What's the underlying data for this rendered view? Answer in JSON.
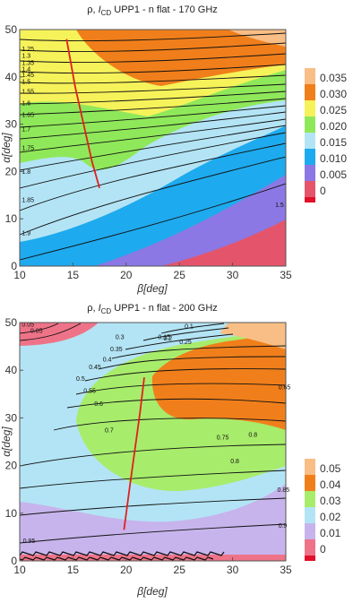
{
  "chart_data": [
    {
      "type": "contour",
      "title": "ρ, I_CD UPP1 - n flat - 170 GHz",
      "title_parts": {
        "rho": "ρ, ",
        "I": "I",
        "sub": "CD",
        "rest": " UPP1 - n flat - 170 GHz"
      },
      "xlabel": "β[deg]",
      "ylabel": "α[deg]",
      "xlim": [
        10,
        35
      ],
      "ylim": [
        0,
        50
      ],
      "xticks": [
        "10",
        "15",
        "20",
        "25",
        "30",
        "35"
      ],
      "yticks": [
        "0",
        "10",
        "20",
        "30",
        "40",
        "50"
      ],
      "legend_position": "right",
      "legend": {
        "labels": [
          "0.035",
          "0.030",
          "0.025",
          "0.020",
          "0.015",
          "0.010",
          "0.005",
          "0"
        ],
        "colors": [
          "#f8be86",
          "#f07f1b",
          "#f6f25a",
          "#8fe85a",
          "#b3e4f5",
          "#1eaaee",
          "#8b78e4",
          "#e4556b"
        ]
      },
      "red_curve": {
        "x": [
          14.4,
          15.2,
          16.0,
          16.8,
          17.5
        ],
        "y": [
          48.0,
          38.0,
          30.0,
          22.0,
          16.5
        ]
      },
      "contour_labels": [
        {
          "text": "1.25",
          "x": 10.2,
          "y": 45.5
        },
        {
          "text": "1.3",
          "x": 10.2,
          "y": 44.0
        },
        {
          "text": "1.35",
          "x": 10.2,
          "y": 42.5
        },
        {
          "text": "1.4",
          "x": 10.2,
          "y": 41.2
        },
        {
          "text": "1.45",
          "x": 10.2,
          "y": 40.0
        },
        {
          "text": "1.5",
          "x": 10.2,
          "y": 38.5
        },
        {
          "text": "1.55",
          "x": 10.2,
          "y": 36.5
        },
        {
          "text": "1.6",
          "x": 10.2,
          "y": 34.0
        },
        {
          "text": "1.65",
          "x": 10.2,
          "y": 31.5
        },
        {
          "text": "1.7",
          "x": 10.2,
          "y": 28.5
        },
        {
          "text": "1.75",
          "x": 10.2,
          "y": 24.5
        },
        {
          "text": "1.8",
          "x": 10.2,
          "y": 19.5
        },
        {
          "text": "1.85",
          "x": 10.2,
          "y": 13.5
        },
        {
          "text": "1.9",
          "x": 10.2,
          "y": 6.5
        },
        {
          "text": "1.5",
          "x": 34.0,
          "y": 12.5
        }
      ]
    },
    {
      "type": "contour",
      "title": "ρ, I_CD UPP1 - n flat - 200 GHz",
      "title_parts": {
        "rho": "ρ, ",
        "I": "I",
        "sub": "CD",
        "rest": " UPP1 - n flat - 200 GHz"
      },
      "xlabel": "β[deg]",
      "ylabel": "α[deg]",
      "xlim": [
        10,
        35
      ],
      "ylim": [
        0,
        50
      ],
      "xticks": [
        "10",
        "15",
        "20",
        "25",
        "30",
        "35"
      ],
      "yticks": [
        "0",
        "10",
        "20",
        "30",
        "40",
        "50"
      ],
      "legend_position": "right",
      "legend": {
        "labels": [
          "0.05",
          "0.04",
          "0.03",
          "0.02",
          "0.01",
          "0"
        ],
        "colors": [
          "#f8be86",
          "#f07f1b",
          "#a8ec6c",
          "#b3e4f5",
          "#c7b4ec",
          "#ef7388"
        ]
      },
      "red_curve": {
        "x": [
          19.8,
          20.3,
          20.8,
          21.3,
          21.7
        ],
        "y": [
          6.5,
          15.0,
          23.0,
          31.0,
          38.5
        ]
      },
      "contour_labels": [
        {
          "text": "0.05",
          "x": 10.2,
          "y": 49.2
        },
        {
          "text": "0.05",
          "x": 11.0,
          "y": 47.8
        },
        {
          "text": "0.1",
          "x": 25.5,
          "y": 48.8
        },
        {
          "text": "0.15",
          "x": 23.0,
          "y": 46.5
        },
        {
          "text": "0.2",
          "x": 23.5,
          "y": 46.2
        },
        {
          "text": "0.25",
          "x": 25.0,
          "y": 45.5
        },
        {
          "text": "0.3",
          "x": 19.0,
          "y": 46.5
        },
        {
          "text": "0.35",
          "x": 18.5,
          "y": 44.0
        },
        {
          "text": "0.4",
          "x": 17.8,
          "y": 41.8
        },
        {
          "text": "0.45",
          "x": 16.5,
          "y": 40.2
        },
        {
          "text": "0.5",
          "x": 15.3,
          "y": 37.8
        },
        {
          "text": "0.55",
          "x": 16.0,
          "y": 35.2
        },
        {
          "text": "0.6",
          "x": 17.0,
          "y": 32.5
        },
        {
          "text": "0.65",
          "x": 34.3,
          "y": 36.0
        },
        {
          "text": "0.7",
          "x": 18.0,
          "y": 27.0
        },
        {
          "text": "0.75",
          "x": 28.5,
          "y": 25.5
        },
        {
          "text": "0.8",
          "x": 31.5,
          "y": 26.0
        },
        {
          "text": "0.8",
          "x": 29.8,
          "y": 20.5
        },
        {
          "text": "0.85",
          "x": 34.2,
          "y": 14.5
        },
        {
          "text": "0.9",
          "x": 34.3,
          "y": 7.0
        },
        {
          "text": "0.95",
          "x": 10.3,
          "y": 3.8
        }
      ]
    }
  ]
}
